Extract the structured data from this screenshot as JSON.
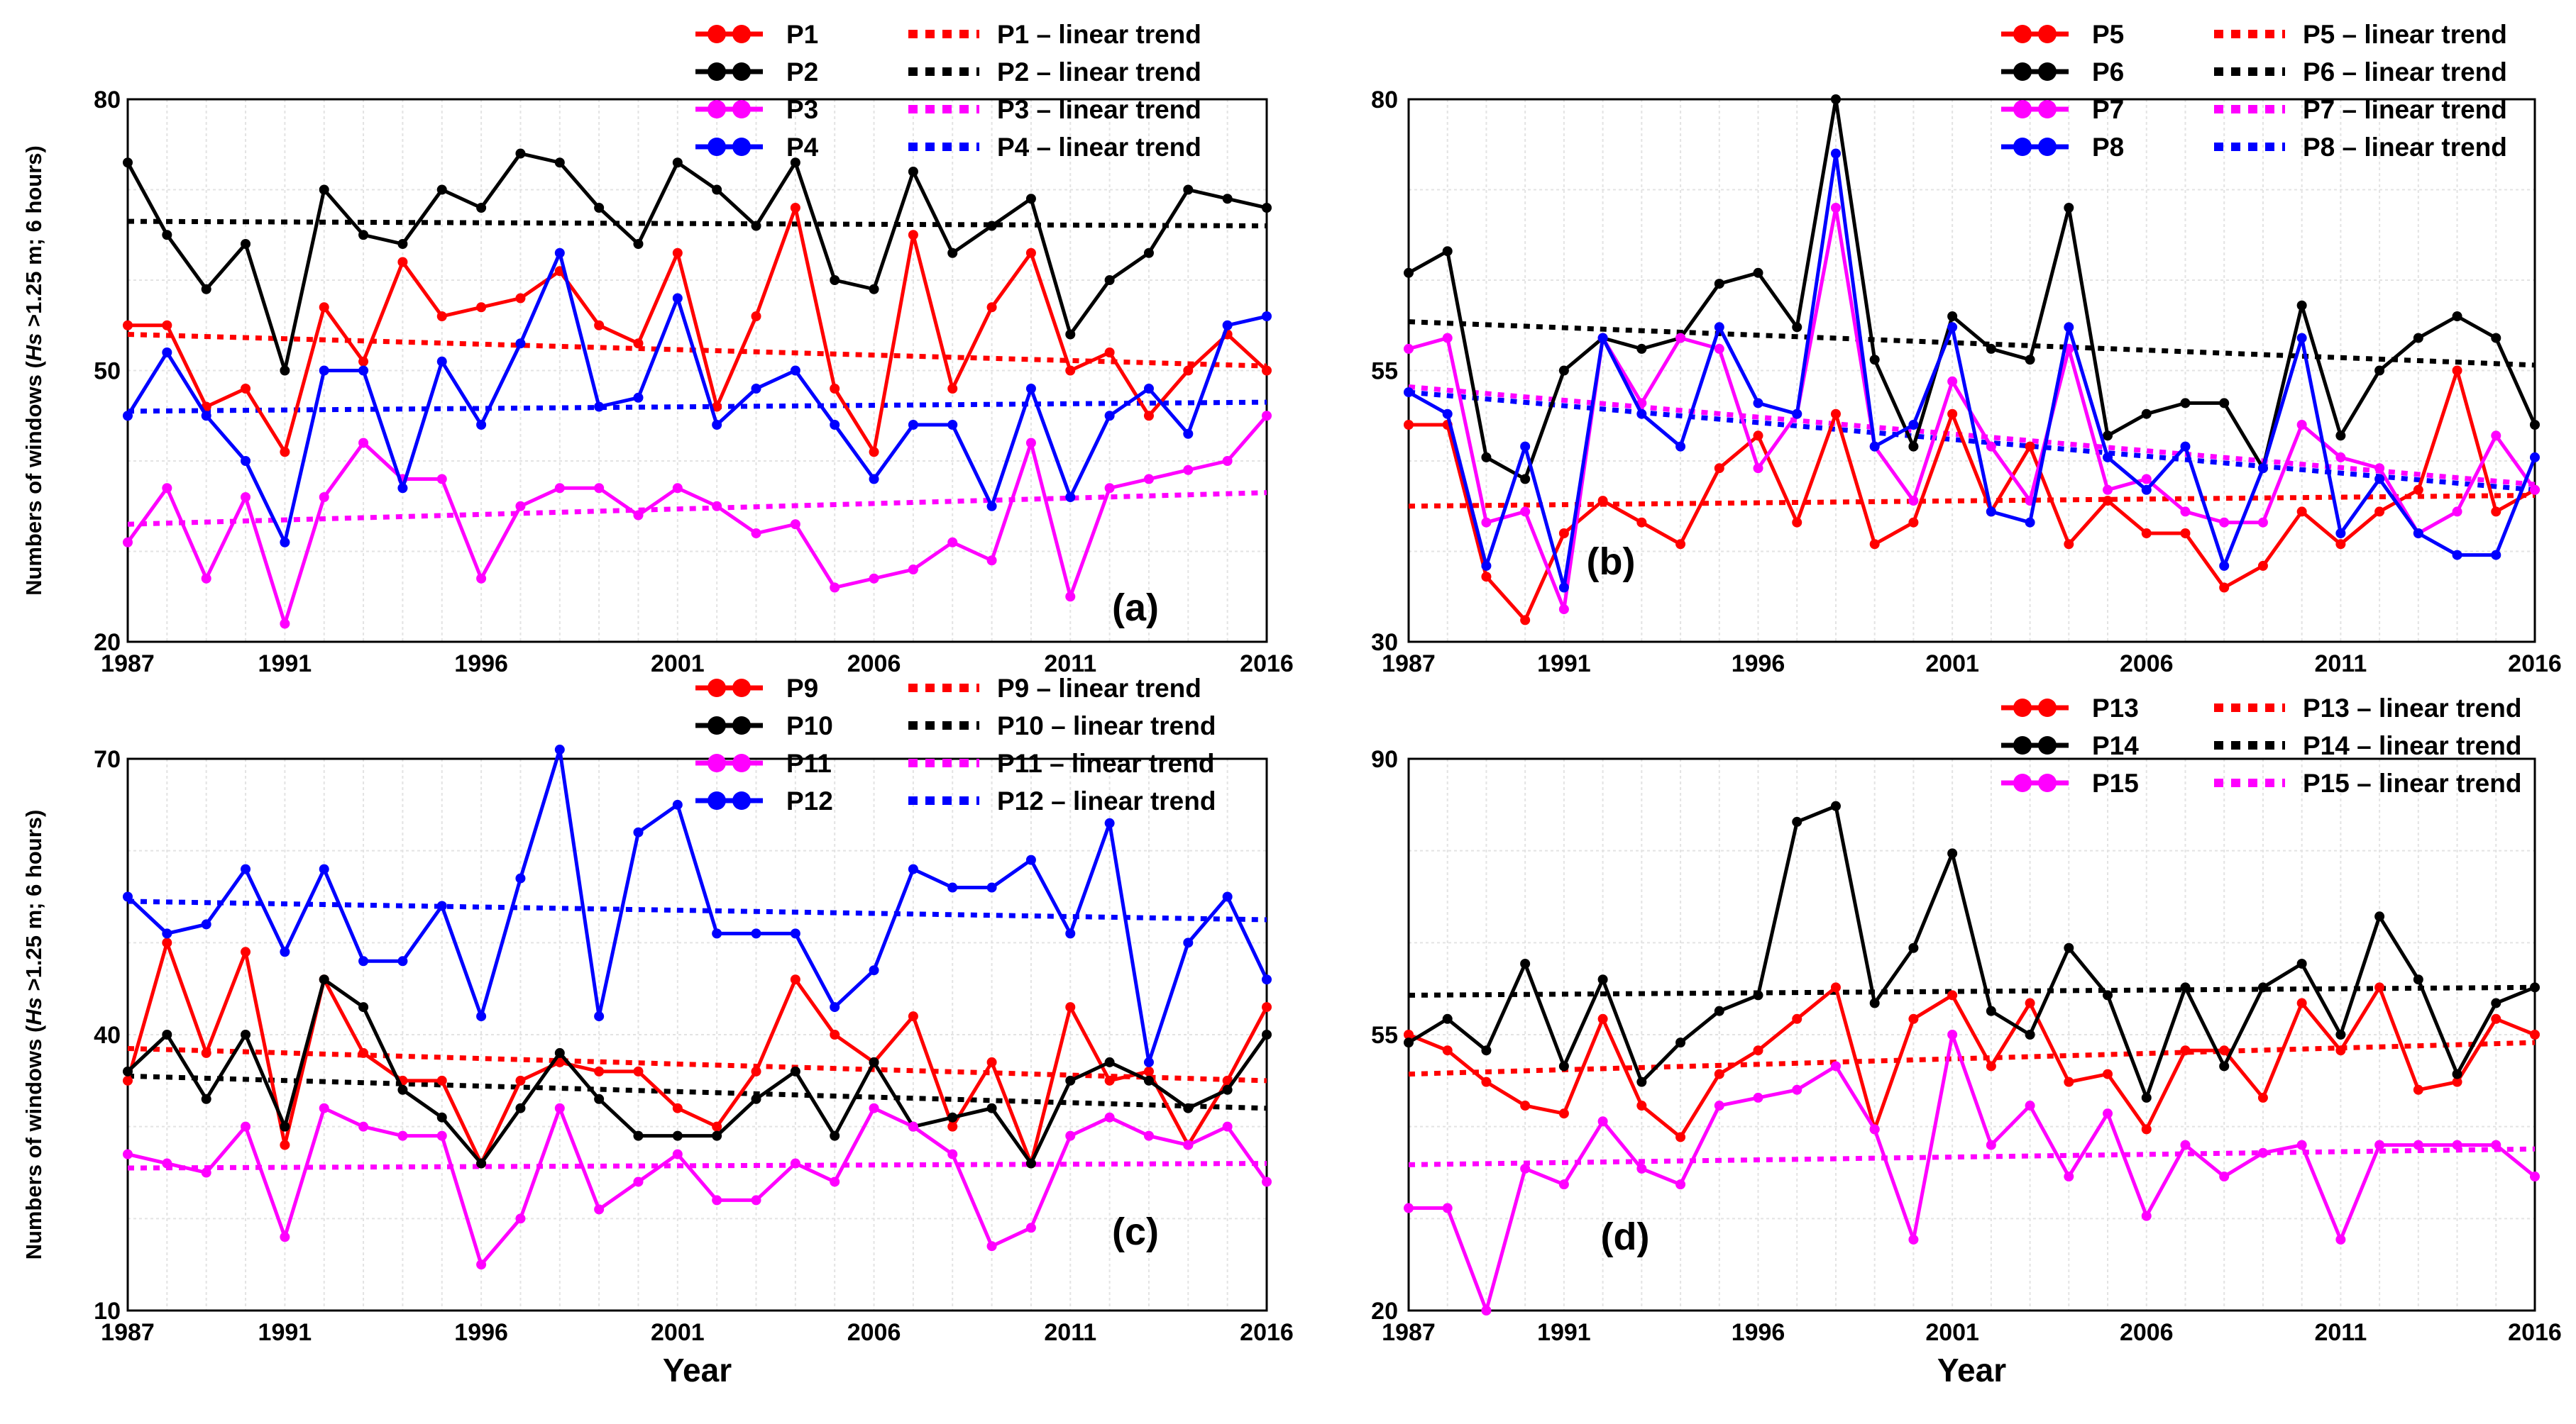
{
  "chart_data": [
    {
      "type": "line",
      "panel_label": "(a)",
      "xlabel": "",
      "ylabel": "Numbers of windows (",
      "ylabel_em": "Hs",
      "ylabel_rest": " >1.25 m; 6 hours)",
      "xlim": [
        1987,
        2016
      ],
      "ylim": [
        20,
        80
      ],
      "yticks": [
        20,
        50,
        80
      ],
      "xticks": [
        1987,
        1991,
        1996,
        2001,
        2006,
        2011,
        2016
      ],
      "x": [
        1987,
        1988,
        1989,
        1990,
        1991,
        1992,
        1993,
        1994,
        1995,
        1996,
        1997,
        1998,
        1999,
        2000,
        2001,
        2002,
        2003,
        2004,
        2005,
        2006,
        2007,
        2008,
        2009,
        2010,
        2011,
        2012,
        2013,
        2014,
        2015,
        2016
      ],
      "series": [
        {
          "name": "P1",
          "color": "#ff0000",
          "values": [
            55,
            55,
            46,
            48,
            41,
            57,
            51,
            62,
            56,
            57,
            58,
            61,
            55,
            53,
            63,
            46,
            56,
            68,
            48,
            41,
            65,
            48,
            57,
            63,
            50,
            52,
            45,
            50,
            54,
            50
          ],
          "trend": [
            54.0,
            50.5
          ]
        },
        {
          "name": "P2",
          "color": "#000000",
          "values": [
            73,
            65,
            59,
            64,
            50,
            70,
            65,
            64,
            70,
            68,
            74,
            73,
            68,
            64,
            73,
            70,
            66,
            73,
            60,
            59,
            72,
            63,
            66,
            69,
            54,
            60,
            63,
            70,
            69,
            68
          ],
          "trend": [
            66.5,
            66.0
          ]
        },
        {
          "name": "P3",
          "color": "#ff00ff",
          "values": [
            31,
            37,
            27,
            36,
            22,
            36,
            42,
            38,
            38,
            27,
            35,
            37,
            37,
            34,
            37,
            35,
            32,
            33,
            26,
            27,
            28,
            31,
            29,
            42,
            25,
            37,
            38,
            39,
            40,
            45
          ],
          "trend": [
            33.0,
            36.5
          ]
        },
        {
          "name": "P4",
          "color": "#0000ff",
          "values": [
            45,
            52,
            45,
            40,
            31,
            50,
            50,
            37,
            51,
            44,
            53,
            63,
            46,
            47,
            58,
            44,
            48,
            50,
            44,
            38,
            44,
            44,
            35,
            48,
            36,
            45,
            48,
            43,
            55,
            56
          ],
          "trend": [
            45.5,
            46.5
          ]
        }
      ],
      "legend": [
        "P1",
        "P2",
        "P3",
        "P4",
        "P1 – linear trend",
        "P2 – linear trend",
        "P3 – linear trend",
        "P4 – linear trend"
      ]
    },
    {
      "type": "line",
      "panel_label": "(b)",
      "xlabel": "",
      "ylabel": "",
      "xlim": [
        1987,
        2016
      ],
      "ylim": [
        30,
        80
      ],
      "yticks": [
        30,
        55,
        80
      ],
      "xticks": [
        1987,
        1991,
        1996,
        2001,
        2006,
        2011,
        2016
      ],
      "x": [
        1987,
        1988,
        1989,
        1990,
        1991,
        1992,
        1993,
        1994,
        1995,
        1996,
        1997,
        1998,
        1999,
        2000,
        2001,
        2002,
        2003,
        2004,
        2005,
        2006,
        2007,
        2008,
        2009,
        2010,
        2011,
        2012,
        2013,
        2014,
        2015,
        2016
      ],
      "series": [
        {
          "name": "P5",
          "color": "#ff0000",
          "values": [
            50,
            50,
            36,
            32,
            40,
            43,
            41,
            39,
            46,
            49,
            41,
            51,
            39,
            41,
            51,
            42,
            48,
            39,
            43,
            40,
            40,
            35,
            37,
            42,
            39,
            42,
            44,
            55,
            42,
            44
          ],
          "trend": [
            42.5,
            43.5
          ]
        },
        {
          "name": "P6",
          "color": "#000000",
          "values": [
            64,
            66,
            47,
            45,
            55,
            58,
            57,
            58,
            63,
            64,
            59,
            80,
            56,
            48,
            60,
            57,
            56,
            70,
            49,
            51,
            52,
            52,
            46,
            61,
            49,
            55,
            58,
            60,
            58,
            50
          ],
          "trend": [
            59.5,
            55.5
          ]
        },
        {
          "name": "P7",
          "color": "#ff00ff",
          "values": [
            57,
            58,
            41,
            42,
            33,
            58,
            52,
            58,
            57,
            46,
            51,
            70,
            48,
            43,
            54,
            48,
            43,
            57,
            44,
            45,
            42,
            41,
            41,
            50,
            47,
            46,
            40,
            42,
            49,
            44
          ],
          "trend": [
            53.5,
            44.5
          ]
        },
        {
          "name": "P8",
          "color": "#0000ff",
          "values": [
            53,
            51,
            37,
            48,
            35,
            58,
            51,
            48,
            59,
            52,
            51,
            75,
            48,
            50,
            59,
            42,
            41,
            59,
            47,
            44,
            48,
            37,
            46,
            58,
            40,
            45,
            40,
            38,
            38,
            47
          ],
          "trend": [
            53.0,
            44.0
          ]
        }
      ],
      "legend": [
        "P5",
        "P6",
        "P7",
        "P8",
        "P5 – linear trend",
        "P6 – linear trend",
        "P7 – linear trend",
        "P8 – linear trend"
      ]
    },
    {
      "type": "line",
      "panel_label": "(c)",
      "xlabel": "Year",
      "ylabel": "Numbers of windows (",
      "ylabel_em": "Hs",
      "ylabel_rest": " >1.25 m; 6 hours)",
      "xlim": [
        1987,
        2016
      ],
      "ylim": [
        10,
        70
      ],
      "yticks": [
        10,
        40,
        70
      ],
      "xticks": [
        1987,
        1991,
        1996,
        2001,
        2006,
        2011,
        2016
      ],
      "x": [
        1987,
        1988,
        1989,
        1990,
        1991,
        1992,
        1993,
        1994,
        1995,
        1996,
        1997,
        1998,
        1999,
        2000,
        2001,
        2002,
        2003,
        2004,
        2005,
        2006,
        2007,
        2008,
        2009,
        2010,
        2011,
        2012,
        2013,
        2014,
        2015,
        2016
      ],
      "series": [
        {
          "name": "P9",
          "color": "#ff0000",
          "values": [
            35,
            50,
            38,
            49,
            28,
            46,
            38,
            35,
            35,
            26,
            35,
            37,
            36,
            36,
            32,
            30,
            36,
            46,
            40,
            37,
            42,
            30,
            37,
            26,
            43,
            35,
            36,
            28,
            35,
            43
          ],
          "trend": [
            38.5,
            35.0
          ]
        },
        {
          "name": "P10",
          "color": "#000000",
          "values": [
            36,
            40,
            33,
            40,
            30,
            46,
            43,
            34,
            31,
            26,
            32,
            38,
            33,
            29,
            29,
            29,
            33,
            36,
            29,
            37,
            30,
            31,
            32,
            26,
            35,
            37,
            35,
            32,
            34,
            40
          ],
          "trend": [
            35.5,
            32.0
          ]
        },
        {
          "name": "P11",
          "color": "#ff00ff",
          "values": [
            27,
            26,
            25,
            30,
            18,
            32,
            30,
            29,
            29,
            15,
            20,
            32,
            21,
            24,
            27,
            22,
            22,
            26,
            24,
            32,
            30,
            27,
            17,
            19,
            29,
            31,
            29,
            28,
            30,
            24
          ],
          "trend": [
            25.5,
            26.0
          ]
        },
        {
          "name": "P12",
          "color": "#0000ff",
          "values": [
            55,
            51,
            52,
            58,
            49,
            58,
            48,
            48,
            54,
            42,
            57,
            71,
            42,
            62,
            65,
            51,
            51,
            51,
            43,
            47,
            58,
            56,
            56,
            59,
            51,
            63,
            37,
            50,
            55,
            46
          ],
          "trend": [
            54.5,
            52.5
          ]
        }
      ],
      "legend": [
        "P9",
        "P10",
        "P11",
        "P12",
        "P9 – linear trend",
        "P10 – linear trend",
        "P11 – linear trend",
        "P12 – linear trend"
      ]
    },
    {
      "type": "line",
      "panel_label": "(d)",
      "xlabel": "Year",
      "ylabel": "",
      "xlim": [
        1987,
        2016
      ],
      "ylim": [
        20,
        90
      ],
      "yticks": [
        20,
        55,
        90
      ],
      "xticks": [
        1987,
        1991,
        1996,
        2001,
        2006,
        2011,
        2016
      ],
      "x": [
        1987,
        1988,
        1989,
        1990,
        1991,
        1992,
        1993,
        1994,
        1995,
        1996,
        1997,
        1998,
        1999,
        2000,
        2001,
        2002,
        2003,
        2004,
        2005,
        2006,
        2007,
        2008,
        2009,
        2010,
        2011,
        2012,
        2013,
        2014,
        2015,
        2016
      ],
      "series": [
        {
          "name": "P13",
          "color": "#ff0000",
          "values": [
            55,
            53,
            49,
            46,
            45,
            57,
            46,
            42,
            50,
            53,
            57,
            61,
            43,
            57,
            60,
            51,
            59,
            49,
            50,
            43,
            53,
            53,
            47,
            59,
            53,
            61,
            48,
            49,
            57,
            55
          ],
          "trend": [
            50.0,
            54.0
          ]
        },
        {
          "name": "P14",
          "color": "#000000",
          "values": [
            54,
            57,
            53,
            64,
            51,
            62,
            49,
            54,
            58,
            60,
            82,
            84,
            59,
            66,
            78,
            58,
            55,
            66,
            60,
            47,
            61,
            51,
            61,
            64,
            55,
            70,
            62,
            50,
            59,
            61
          ],
          "trend": [
            60.0,
            61.0
          ]
        },
        {
          "name": "P15",
          "color": "#ff00ff",
          "values": [
            33,
            33,
            20,
            38,
            36,
            44,
            38,
            36,
            46,
            47,
            48,
            51,
            43,
            29,
            55,
            41,
            46,
            37,
            45,
            32,
            41,
            37,
            40,
            41,
            29,
            41,
            41,
            41,
            41,
            37
          ],
          "trend": [
            38.5,
            40.5
          ]
        }
      ],
      "legend": [
        "P13",
        "P14",
        "P15",
        "P13 – linear trend",
        "P14 – linear trend",
        "P15 – linear trend"
      ]
    }
  ]
}
